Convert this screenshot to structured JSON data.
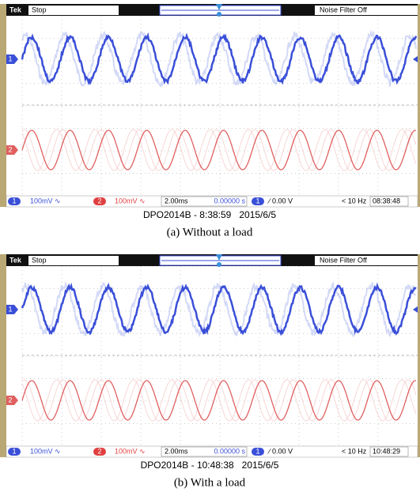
{
  "panels": [
    {
      "header": {
        "brand": "Tek",
        "status": "Stop",
        "filter": "Noise Filter Off"
      },
      "channel_markers": [
        "1",
        "2"
      ],
      "footer": {
        "ch1": "1",
        "ch1_scale": "100mV ∿",
        "ch2": "2",
        "ch2_scale": "100mV ∿",
        "timebase": "2.00ms",
        "position": "0.00000 s",
        "trigger_source": "1",
        "trigger_level": "∕ 0.00 V",
        "frequency": "< 10 Hz",
        "clock": "08:38:48"
      },
      "info": "DPO2014B - 8:38:59   2015/6/5",
      "caption": "(a) Without a load"
    },
    {
      "header": {
        "brand": "Tek",
        "status": "Stop",
        "filter": "Noise Filter Off"
      },
      "channel_markers": [
        "1",
        "2"
      ],
      "footer": {
        "ch1": "1",
        "ch1_scale": "100mV ∿",
        "ch2": "2",
        "ch2_scale": "100mV ∿",
        "timebase": "2.00ms",
        "position": "0.00000 s",
        "trigger_source": "1",
        "trigger_level": "∕ 0.00 V",
        "frequency": "< 10 Hz",
        "clock": "10:48:29"
      },
      "info": "DPO2014B - 10:48:38   2015/6/5",
      "caption": "(b) With a load"
    }
  ]
}
